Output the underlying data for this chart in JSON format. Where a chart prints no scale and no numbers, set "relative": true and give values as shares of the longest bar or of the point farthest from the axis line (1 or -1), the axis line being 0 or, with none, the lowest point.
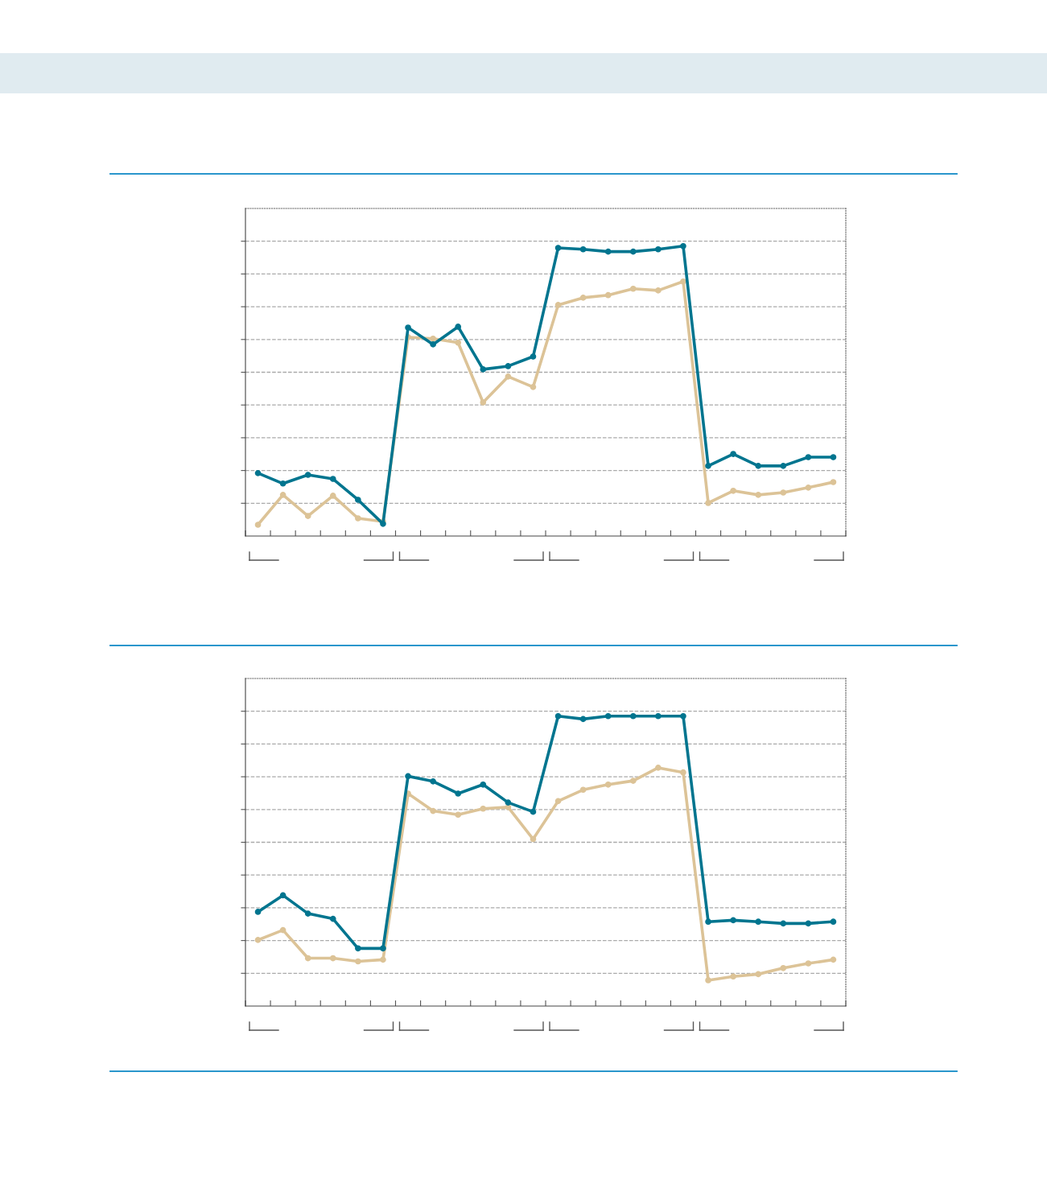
{
  "chart_data": [
    {
      "type": "line",
      "relative": true,
      "categories": [
        null,
        null,
        null,
        null,
        null,
        null,
        null,
        null,
        null,
        null,
        null,
        null,
        null,
        null,
        null,
        null,
        null,
        null,
        null,
        null,
        null,
        null,
        null,
        null
      ],
      "grid": "y",
      "marker": "circle",
      "line_style": "solid",
      "series": [
        {
          "color": "#00758f",
          "values": [
            0.217,
            0.181,
            0.211,
            0.197,
            0.125,
            0.042,
            0.719,
            0.661,
            0.722,
            0.575,
            0.586,
            0.619,
            0.994,
            0.989,
            0.981,
            0.981,
            0.989,
            1,
            0.242,
            0.283,
            0.242,
            0.242,
            0.272,
            0.272
          ]
        },
        {
          "color": "#dcc397",
          "values": [
            0.039,
            0.142,
            0.069,
            0.139,
            0.061,
            0.05,
            0.686,
            0.681,
            0.667,
            0.461,
            0.55,
            0.514,
            0.797,
            0.822,
            0.831,
            0.853,
            0.847,
            0.878,
            0.114,
            0.156,
            0.142,
            0.15,
            0.167,
            0.186
          ]
        }
      ]
    },
    {
      "type": "line",
      "relative": true,
      "categories": [
        null,
        null,
        null,
        null,
        null,
        null,
        null,
        null,
        null,
        null,
        null,
        null,
        null,
        null,
        null,
        null,
        null,
        null,
        null,
        null,
        null,
        null,
        null,
        null
      ],
      "grid": "y",
      "marker": "circle",
      "line_style": "solid",
      "series": [
        {
          "color": "#00758f",
          "values": [
            0.325,
            0.382,
            0.319,
            0.301,
            0.199,
            0.199,
            0.793,
            0.775,
            0.733,
            0.764,
            0.702,
            0.67,
            1,
            0.99,
            1,
            1,
            1,
            1,
            0.291,
            0.296,
            0.291,
            0.285,
            0.285,
            0.291
          ]
        },
        {
          "color": "#dcc397",
          "values": [
            0.228,
            0.262,
            0.165,
            0.165,
            0.154,
            0.16,
            0.733,
            0.673,
            0.66,
            0.681,
            0.686,
            0.576,
            0.707,
            0.746,
            0.764,
            0.777,
            0.822,
            0.806,
            0.089,
            0.102,
            0.11,
            0.131,
            0.147,
            0.16
          ]
        }
      ]
    }
  ]
}
